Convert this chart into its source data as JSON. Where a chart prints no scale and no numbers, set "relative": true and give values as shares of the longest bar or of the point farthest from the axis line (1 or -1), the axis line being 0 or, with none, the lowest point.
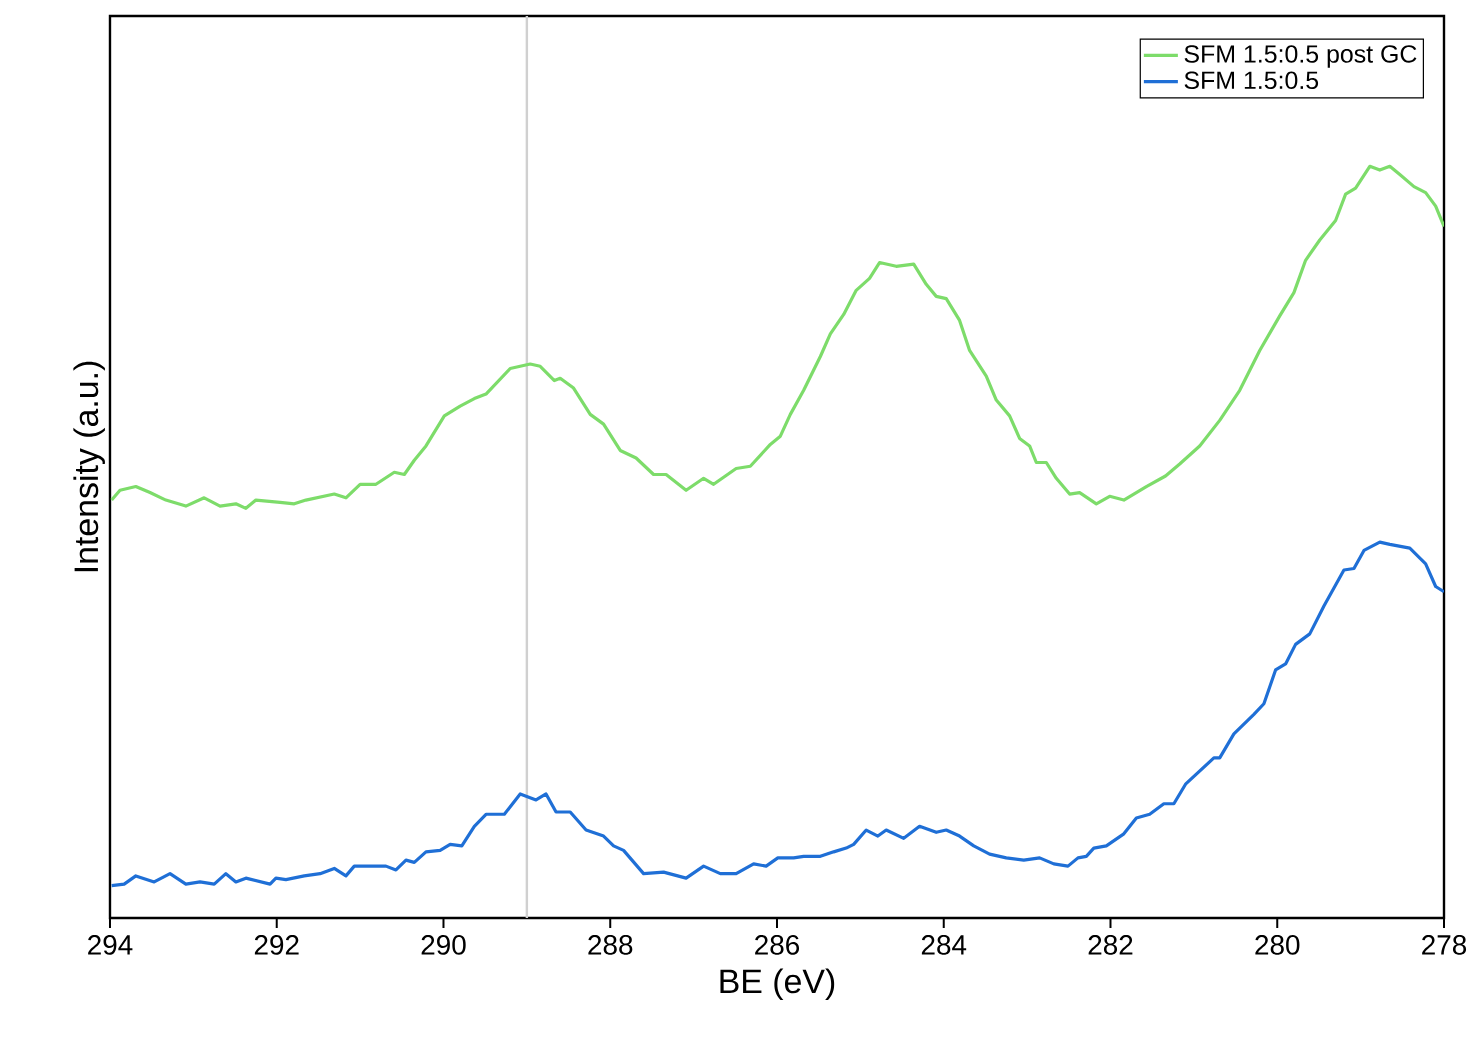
{
  "chart_data": {
    "type": "line",
    "relative": true,
    "xlabel": "BE (eV)",
    "ylabel": "Intensity (a.u.)",
    "xlim": [
      294,
      278
    ],
    "xticks": [
      294,
      292,
      290,
      288,
      286,
      284,
      282,
      280,
      278
    ],
    "legend": "top right",
    "ref_lines": [
      {
        "axis": "x",
        "value": 289,
        "color": "#d0d0d0"
      }
    ],
    "series": [
      {
        "name": "SFM 1.5:0.5 post GC",
        "color": "#7ddc6a",
        "x": [
          293.98,
          293.88,
          293.69,
          293.52,
          293.33,
          293.09,
          292.87,
          292.68,
          292.49,
          292.37,
          292.25,
          291.96,
          291.79,
          291.65,
          291.31,
          291.17,
          291.0,
          290.81,
          290.59,
          290.47,
          290.35,
          290.21,
          289.99,
          289.8,
          289.63,
          289.49,
          289.2,
          288.96,
          288.84,
          288.67,
          288.6,
          288.44,
          288.24,
          288.08,
          287.88,
          287.69,
          287.48,
          287.33,
          287.09,
          286.88,
          286.76,
          286.49,
          286.32,
          286.08,
          285.96,
          285.84,
          285.68,
          285.48,
          285.36,
          285.2,
          285.05,
          284.89,
          284.77,
          284.57,
          284.36,
          284.21,
          284.09,
          283.97,
          283.81,
          283.69,
          283.49,
          283.37,
          283.21,
          283.09,
          282.97,
          282.89,
          282.77,
          282.65,
          282.49,
          282.37,
          282.17,
          282.01,
          281.84,
          281.57,
          281.34,
          281.17,
          280.93,
          280.69,
          280.45,
          280.21,
          279.97,
          279.8,
          279.66,
          279.49,
          279.3,
          279.18,
          279.06,
          278.89,
          278.77,
          278.65,
          278.53,
          278.36,
          278.22,
          278.1,
          278.0
        ],
        "values": [
          0.556,
          0.569,
          0.574,
          0.566,
          0.556,
          0.548,
          0.559,
          0.548,
          0.551,
          0.545,
          0.556,
          0.553,
          0.551,
          0.556,
          0.564,
          0.559,
          0.577,
          0.577,
          0.593,
          0.59,
          0.609,
          0.628,
          0.668,
          0.681,
          0.691,
          0.697,
          0.731,
          0.737,
          0.734,
          0.715,
          0.718,
          0.705,
          0.67,
          0.657,
          0.622,
          0.612,
          0.59,
          0.59,
          0.569,
          0.585,
          0.577,
          0.598,
          0.601,
          0.63,
          0.641,
          0.67,
          0.702,
          0.747,
          0.777,
          0.803,
          0.835,
          0.851,
          0.872,
          0.867,
          0.87,
          0.843,
          0.827,
          0.824,
          0.795,
          0.755,
          0.721,
          0.689,
          0.668,
          0.638,
          0.628,
          0.606,
          0.606,
          0.585,
          0.564,
          0.566,
          0.551,
          0.561,
          0.556,
          0.574,
          0.588,
          0.604,
          0.628,
          0.662,
          0.702,
          0.755,
          0.801,
          0.832,
          0.875,
          0.902,
          0.928,
          0.963,
          0.971,
          1.0,
          0.995,
          1.0,
          0.989,
          0.973,
          0.965,
          0.947,
          0.92
        ]
      },
      {
        "name": "SFM 1.5:0.5",
        "color": "#1f6fd6",
        "x": [
          293.98,
          293.83,
          293.69,
          293.47,
          293.28,
          293.09,
          292.92,
          292.75,
          292.61,
          292.49,
          292.37,
          292.08,
          292.01,
          291.89,
          291.67,
          291.48,
          291.31,
          291.17,
          291.07,
          290.93,
          290.69,
          290.57,
          290.45,
          290.35,
          290.21,
          290.04,
          289.92,
          289.78,
          289.63,
          289.49,
          289.27,
          289.08,
          288.89,
          288.77,
          288.65,
          288.48,
          288.29,
          288.08,
          287.96,
          287.84,
          287.6,
          287.36,
          287.09,
          286.88,
          286.68,
          286.49,
          286.28,
          286.13,
          285.99,
          285.8,
          285.68,
          285.48,
          285.32,
          285.17,
          285.08,
          284.93,
          284.79,
          284.69,
          284.48,
          284.29,
          284.09,
          283.97,
          283.81,
          283.64,
          283.45,
          283.25,
          283.04,
          282.85,
          282.68,
          282.51,
          282.39,
          282.29,
          282.2,
          282.05,
          281.84,
          281.69,
          281.53,
          281.36,
          281.24,
          281.1,
          280.76,
          280.69,
          280.52,
          280.28,
          280.16,
          280.02,
          279.9,
          279.78,
          279.61,
          279.44,
          279.2,
          279.08,
          278.96,
          278.77,
          278.65,
          278.41,
          278.22,
          278.1,
          278.0
        ],
        "values": [
          0.043,
          0.045,
          0.056,
          0.048,
          0.059,
          0.045,
          0.048,
          0.045,
          0.059,
          0.048,
          0.053,
          0.045,
          0.053,
          0.051,
          0.056,
          0.059,
          0.066,
          0.056,
          0.069,
          0.069,
          0.069,
          0.064,
          0.077,
          0.074,
          0.088,
          0.09,
          0.098,
          0.096,
          0.122,
          0.138,
          0.138,
          0.165,
          0.157,
          0.165,
          0.141,
          0.141,
          0.117,
          0.109,
          0.096,
          0.09,
          0.059,
          0.061,
          0.053,
          0.069,
          0.059,
          0.059,
          0.072,
          0.069,
          0.08,
          0.08,
          0.082,
          0.082,
          0.088,
          0.093,
          0.098,
          0.117,
          0.109,
          0.117,
          0.106,
          0.122,
          0.114,
          0.117,
          0.109,
          0.096,
          0.085,
          0.08,
          0.077,
          0.08,
          0.072,
          0.069,
          0.08,
          0.082,
          0.093,
          0.096,
          0.112,
          0.133,
          0.138,
          0.152,
          0.152,
          0.178,
          0.213,
          0.213,
          0.245,
          0.271,
          0.285,
          0.33,
          0.338,
          0.364,
          0.378,
          0.415,
          0.463,
          0.465,
          0.489,
          0.5,
          0.497,
          0.492,
          0.471,
          0.441,
          0.434
        ]
      }
    ]
  }
}
